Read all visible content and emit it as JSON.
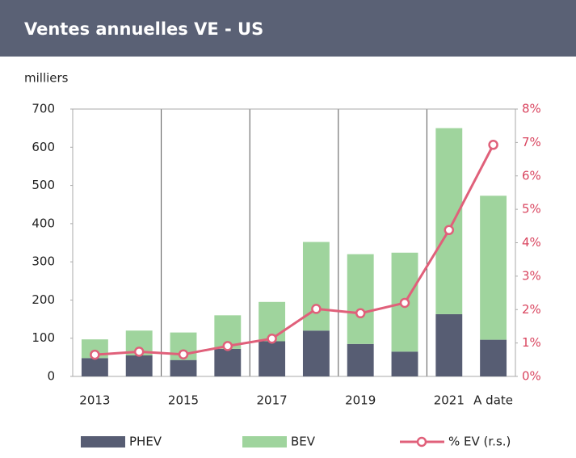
{
  "chart_data": {
    "type": "bar",
    "stacked": true,
    "title": "Ventes annuelles VE - US",
    "y_label": "milliers",
    "categories": [
      "2013",
      null,
      "2015",
      null,
      "2017",
      null,
      "2019",
      null,
      "2021",
      "A date"
    ],
    "series": [
      {
        "name": "PHEV",
        "color": "#575d73",
        "values": [
          48,
          55,
          43,
          72,
          92,
          120,
          85,
          65,
          163,
          96
        ]
      },
      {
        "name": "BEV",
        "color": "#9fd49d",
        "values": [
          49,
          65,
          72,
          88,
          103,
          232,
          235,
          259,
          487,
          377
        ]
      },
      {
        "name": "% EV (r.s.)",
        "type": "line",
        "axis": "y2",
        "color": "#e0607a",
        "values": [
          0.65,
          0.74,
          0.66,
          0.91,
          1.13,
          2.02,
          1.89,
          2.2,
          4.38,
          6.93
        ]
      }
    ],
    "ylim": [
      0,
      700
    ],
    "yticks": [
      0,
      100,
      200,
      300,
      400,
      500,
      600,
      700
    ],
    "y2lim": [
      0,
      8
    ],
    "y2ticks": [
      {
        "value": 0,
        "label": "0%"
      },
      {
        "value": 1,
        "label": "1%"
      },
      {
        "value": 2,
        "label": "2%"
      },
      {
        "value": 3,
        "label": "3%"
      },
      {
        "value": 4,
        "label": "4%"
      },
      {
        "value": 5,
        "label": "5%"
      },
      {
        "value": 6,
        "label": "6%"
      },
      {
        "value": 7,
        "label": "7%"
      },
      {
        "value": 8,
        "label": "8%"
      }
    ],
    "y2_color": "#d9455f",
    "legend": "bottom"
  }
}
